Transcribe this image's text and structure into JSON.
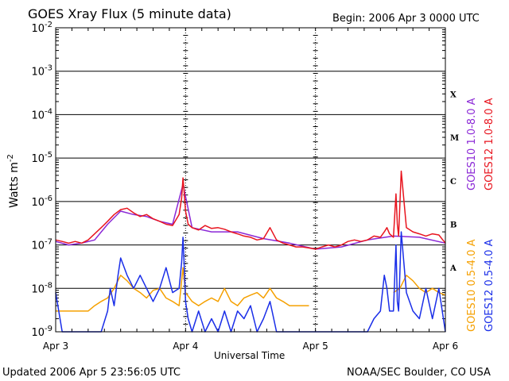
{
  "header": {
    "title": "GOES Xray Flux (5 minute data)",
    "begin": "Begin:  2006 Apr 3 0000 UTC"
  },
  "footer": {
    "updated": "Updated 2006 Apr  5 23:56:05 UTC",
    "credit": "NOAA/SEC Boulder, CO USA"
  },
  "chart_data": {
    "type": "line",
    "title": "GOES Xray Flux (5 minute data)",
    "xlabel": "Universal Time",
    "ylabel": "Watts m",
    "ylabel_superscript": "-2",
    "x_ticks": [
      "Apr 3",
      "Apr 4",
      "Apr 5",
      "Apr 6"
    ],
    "xlim_days": [
      0,
      3
    ],
    "yscale": "log",
    "ylim": [
      1e-09,
      0.01
    ],
    "y_ticks": [
      {
        "base": "10",
        "exp": "-2",
        "value": 0.01
      },
      {
        "base": "10",
        "exp": "-3",
        "value": 0.001
      },
      {
        "base": "10",
        "exp": "-4",
        "value": 0.0001
      },
      {
        "base": "10",
        "exp": "-5",
        "value": 1e-05
      },
      {
        "base": "10",
        "exp": "-6",
        "value": 1e-06
      },
      {
        "base": "10",
        "exp": "-7",
        "value": 1e-07
      },
      {
        "base": "10",
        "exp": "-8",
        "value": 1e-08
      },
      {
        "base": "10",
        "exp": "-9",
        "value": 1e-09
      }
    ],
    "flare_classes": [
      {
        "label": "X",
        "value": 0.0003
      },
      {
        "label": "M",
        "value": 3e-05
      },
      {
        "label": "C",
        "value": 3e-06
      },
      {
        "label": "B",
        "value": 3e-07
      },
      {
        "label": "A",
        "value": 3e-08
      }
    ],
    "legend_right_top": [
      {
        "label": "GOES10 1.0-8.0 A",
        "color": "#8b28d6"
      },
      {
        "label": "GOES12 1.0-8.0 A",
        "color": "#e8141e"
      }
    ],
    "legend_right_bottom": [
      {
        "label": "GOES10 0.5-4.0 A",
        "color": "#f5a000"
      },
      {
        "label": "GOES12 0.5-4.0 A",
        "color": "#1a2ee8"
      }
    ],
    "series": [
      {
        "name": "GOES10 1.0-8.0 A",
        "color": "#8b28d6",
        "x": [
          0,
          0.1,
          0.2,
          0.3,
          0.4,
          0.5,
          0.6,
          0.7,
          0.8,
          0.9,
          0.98,
          1.05,
          1.2,
          1.4,
          1.6,
          1.8,
          2.0,
          2.2,
          2.4,
          2.6,
          2.8,
          3.0
        ],
        "y": [
          1.2e-07,
          1e-07,
          1.1e-07,
          1.3e-07,
          3e-07,
          6e-07,
          5e-07,
          4.5e-07,
          3.5e-07,
          3e-07,
          2.5e-06,
          2.5e-07,
          2e-07,
          2e-07,
          1.4e-07,
          1.1e-07,
          8e-08,
          9e-08,
          1.3e-07,
          1.6e-07,
          1.5e-07,
          1.1e-07
        ]
      },
      {
        "name": "GOES12 1.0-8.0 A",
        "color": "#e8141e",
        "x": [
          0,
          0.05,
          0.1,
          0.15,
          0.2,
          0.25,
          0.3,
          0.35,
          0.4,
          0.45,
          0.5,
          0.55,
          0.6,
          0.65,
          0.7,
          0.75,
          0.8,
          0.85,
          0.9,
          0.95,
          0.97,
          0.98,
          0.99,
          1.0,
          1.02,
          1.05,
          1.1,
          1.15,
          1.2,
          1.25,
          1.3,
          1.35,
          1.4,
          1.45,
          1.5,
          1.55,
          1.6,
          1.65,
          1.7,
          1.75,
          1.8,
          1.85,
          1.9,
          1.95,
          2.0,
          2.05,
          2.1,
          2.15,
          2.2,
          2.25,
          2.3,
          2.35,
          2.4,
          2.45,
          2.5,
          2.53,
          2.55,
          2.57,
          2.6,
          2.62,
          2.63,
          2.64,
          2.66,
          2.7,
          2.75,
          2.8,
          2.85,
          2.9,
          2.95,
          3.0
        ],
        "y": [
          1.3e-07,
          1.2e-07,
          1.1e-07,
          1.2e-07,
          1.1e-07,
          1.3e-07,
          1.8e-07,
          2.5e-07,
          3.5e-07,
          5e-07,
          6.5e-07,
          7e-07,
          5.5e-07,
          4.5e-07,
          5e-07,
          4e-07,
          3.5e-07,
          3e-07,
          2.8e-07,
          5e-07,
          1.2e-06,
          3.5e-06,
          1.5e-06,
          6e-07,
          3e-07,
          2.5e-07,
          2.2e-07,
          2.8e-07,
          2.4e-07,
          2.5e-07,
          2.3e-07,
          2e-07,
          1.8e-07,
          1.6e-07,
          1.5e-07,
          1.3e-07,
          1.4e-07,
          2.5e-07,
          1.3e-07,
          1.1e-07,
          1e-07,
          9e-08,
          9e-08,
          8.5e-08,
          8e-08,
          9e-08,
          1e-07,
          9e-08,
          1e-07,
          1.2e-07,
          1.3e-07,
          1.2e-07,
          1.3e-07,
          1.6e-07,
          1.5e-07,
          2e-07,
          2.5e-07,
          1.8e-07,
          1.5e-07,
          1.5e-06,
          3e-07,
          1.6e-07,
          5e-06,
          2.5e-07,
          2e-07,
          1.8e-07,
          1.6e-07,
          1.8e-07,
          1.7e-07,
          1.1e-07
        ]
      },
      {
        "name": "GOES10 0.5-4.0 A",
        "color": "#f5a000",
        "x": [
          0,
          0.05,
          0.1,
          0.15,
          0.2,
          0.25,
          0.3,
          0.35,
          0.4,
          0.45,
          0.5,
          0.55,
          0.6,
          0.65,
          0.7,
          0.75,
          0.8,
          0.85,
          0.9,
          0.95,
          0.98,
          1.0,
          1.05,
          1.1,
          1.15,
          1.2,
          1.25,
          1.3,
          1.35,
          1.4,
          1.45,
          1.5,
          1.55,
          1.6,
          1.65,
          1.7,
          1.75,
          1.8,
          1.85,
          1.9,
          1.95,
          2.0,
          2.05,
          2.1,
          2.15,
          2.2,
          2.25,
          2.3,
          2.35,
          2.4,
          2.45,
          2.5,
          2.55,
          2.6,
          2.65,
          2.7,
          2.75,
          2.8,
          2.85,
          2.9,
          2.95,
          3.0
        ],
        "y": [
          3e-09,
          3e-09,
          3e-09,
          3e-09,
          3e-09,
          3e-09,
          4e-09,
          5e-09,
          6e-09,
          1e-08,
          2e-08,
          1.5e-08,
          1e-08,
          8e-09,
          6e-09,
          9e-09,
          1e-08,
          6e-09,
          5e-09,
          4e-09,
          3e-08,
          8e-09,
          5e-09,
          4e-09,
          5e-09,
          6e-09,
          5e-09,
          1e-08,
          5e-09,
          4e-09,
          6e-09,
          7e-09,
          8e-09,
          6e-09,
          1e-08,
          6e-09,
          5e-09,
          4e-09,
          4e-09,
          4e-09,
          4e-09,
          null,
          null,
          null,
          null,
          null,
          null,
          null,
          null,
          null,
          null,
          null,
          null,
          8e-09,
          1e-08,
          2e-08,
          1.5e-08,
          1e-08,
          8e-09,
          1e-08,
          8e-09,
          7e-09
        ]
      },
      {
        "name": "GOES12 0.5-4.0 A",
        "color": "#1a2ee8",
        "x": [
          0,
          0.05,
          0.1,
          0.15,
          0.2,
          0.25,
          0.3,
          0.35,
          0.4,
          0.42,
          0.45,
          0.48,
          0.5,
          0.55,
          0.6,
          0.65,
          0.7,
          0.75,
          0.8,
          0.85,
          0.9,
          0.95,
          0.97,
          0.98,
          0.99,
          1.0,
          1.02,
          1.05,
          1.1,
          1.15,
          1.2,
          1.25,
          1.3,
          1.35,
          1.4,
          1.45,
          1.5,
          1.55,
          1.6,
          1.65,
          1.7,
          1.75,
          1.8,
          1.85,
          1.9,
          1.95,
          2.0,
          2.05,
          2.1,
          2.15,
          2.2,
          2.25,
          2.3,
          2.35,
          2.4,
          2.45,
          2.5,
          2.53,
          2.55,
          2.57,
          2.6,
          2.62,
          2.63,
          2.64,
          2.66,
          2.7,
          2.75,
          2.8,
          2.85,
          2.9,
          2.95,
          3.0
        ],
        "y": [
          8e-09,
          1e-09,
          1e-09,
          1e-09,
          1e-09,
          1e-09,
          1e-09,
          1e-09,
          3e-09,
          1e-08,
          4e-09,
          2e-08,
          5e-08,
          2e-08,
          1e-08,
          2e-08,
          1e-08,
          5e-09,
          1e-08,
          3e-08,
          8e-09,
          1e-08,
          4e-08,
          1.5e-07,
          3e-08,
          5e-09,
          2e-09,
          1e-09,
          3e-09,
          1e-09,
          2e-09,
          1e-09,
          3e-09,
          1e-09,
          3e-09,
          2e-09,
          4e-09,
          1e-09,
          2e-09,
          5e-09,
          1e-09,
          1e-09,
          1e-09,
          1e-09,
          1e-09,
          1e-09,
          1e-09,
          1e-09,
          1e-09,
          1e-09,
          1e-09,
          1e-09,
          1e-09,
          1e-09,
          1e-09,
          2e-09,
          3e-09,
          2e-08,
          1e-08,
          3e-09,
          3e-09,
          1e-07,
          5e-09,
          3e-09,
          2e-07,
          8e-09,
          3e-09,
          2e-09,
          1e-08,
          2e-09,
          1e-08,
          1e-09
        ]
      }
    ]
  }
}
